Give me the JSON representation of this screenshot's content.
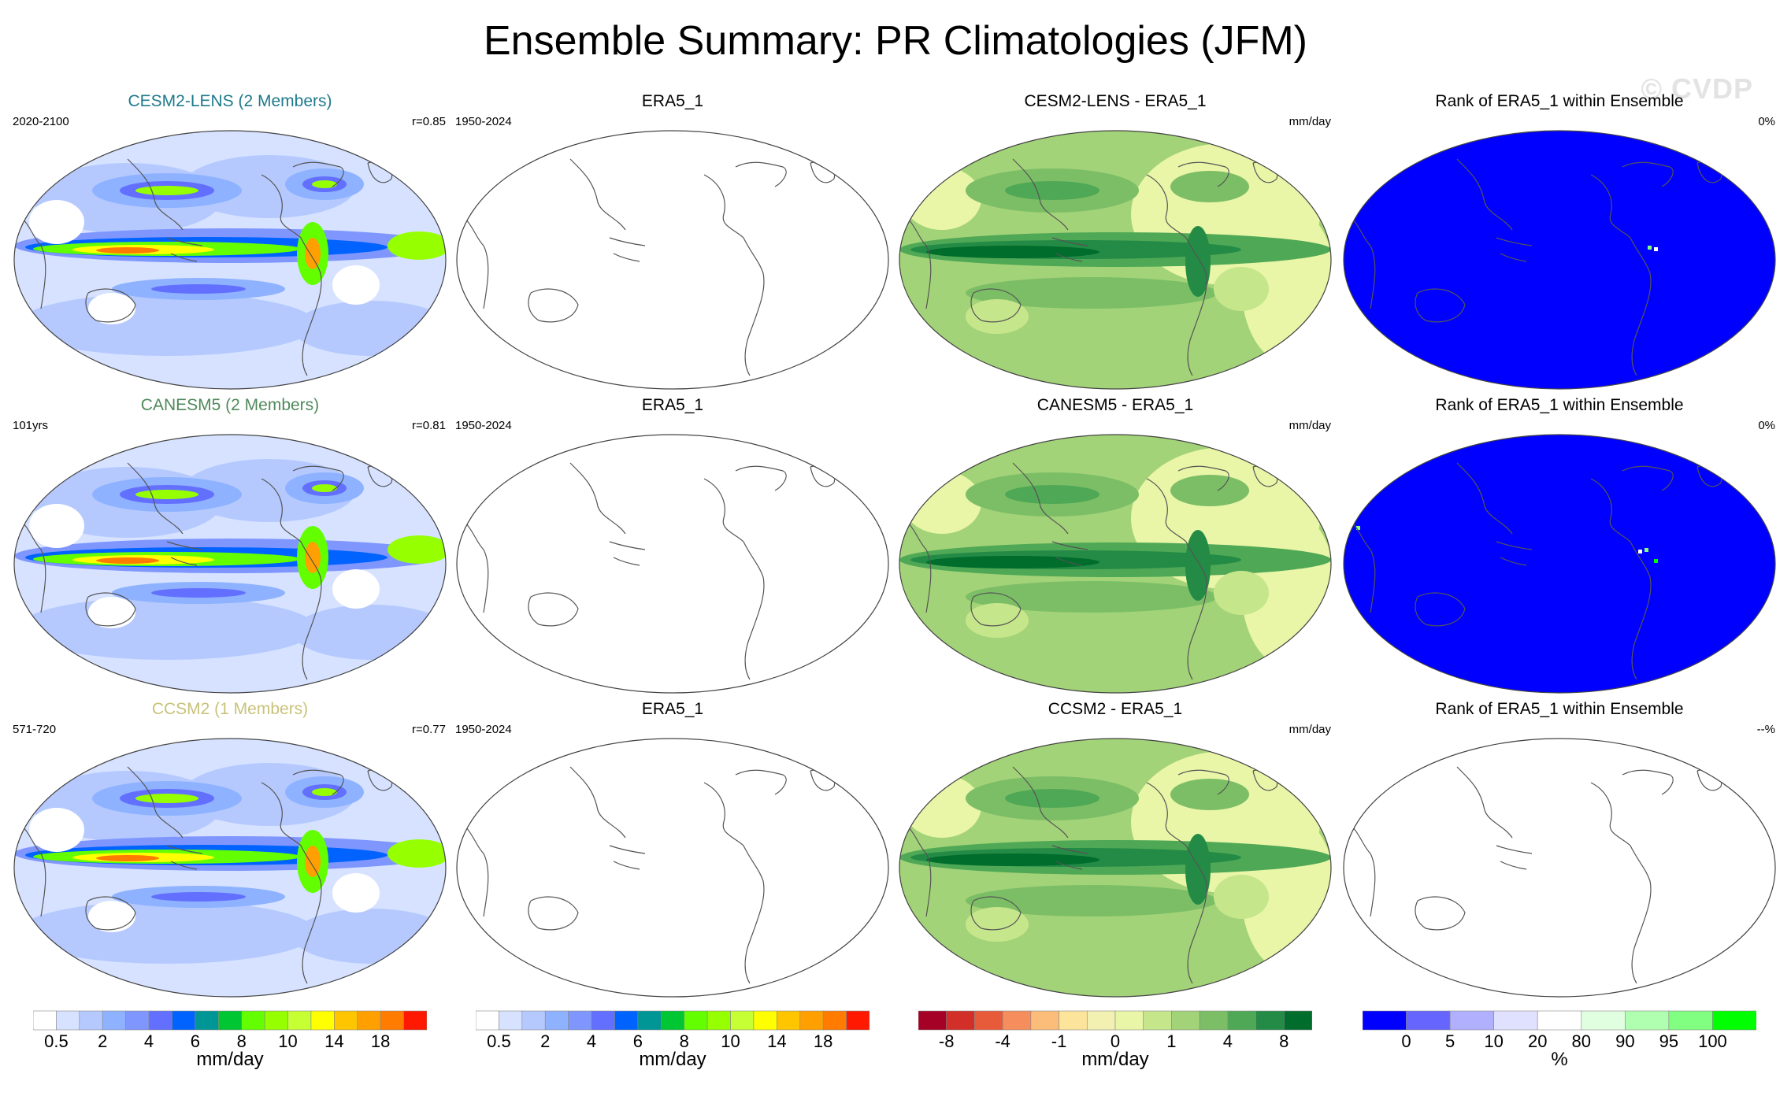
{
  "title": "Ensemble Summary: PR Climatologies (JFM)",
  "watermark": "© CVDP",
  "chart_data": [
    {
      "type": "heatmap",
      "title": "CESM2-LENS (2 Members)",
      "title_color": "#1f7a8c",
      "left_label": "2020-2100",
      "right_label": "r=0.85",
      "field": "model-precip",
      "colorbar": "precip",
      "variant": 0
    },
    {
      "type": "heatmap",
      "title": "ERA5_1",
      "title_color": "#000000",
      "left_label": "1950-2024",
      "right_label": "",
      "field": "blank",
      "colorbar": "precip",
      "variant": 0
    },
    {
      "type": "heatmap",
      "title": "CESM2-LENS - ERA5_1",
      "title_color": "#000000",
      "left_label": "",
      "right_label": "mm/day",
      "field": "difference",
      "colorbar": "diff",
      "variant": 0
    },
    {
      "type": "heatmap",
      "title": "Rank of ERA5_1 within Ensemble",
      "title_color": "#000000",
      "left_label": "",
      "right_label": "0%",
      "field": "rank",
      "colorbar": "rank",
      "variant": 0
    },
    {
      "type": "heatmap",
      "title": "CANESM5 (2 Members)",
      "title_color": "#4f8a5b",
      "left_label": "101yrs",
      "right_label": "r=0.81",
      "field": "model-precip",
      "colorbar": "precip",
      "variant": 1
    },
    {
      "type": "heatmap",
      "title": "ERA5_1",
      "title_color": "#000000",
      "left_label": "1950-2024",
      "right_label": "",
      "field": "blank",
      "colorbar": "precip",
      "variant": 1
    },
    {
      "type": "heatmap",
      "title": "CANESM5 - ERA5_1",
      "title_color": "#000000",
      "left_label": "",
      "right_label": "mm/day",
      "field": "difference",
      "colorbar": "diff",
      "variant": 1
    },
    {
      "type": "heatmap",
      "title": "Rank of ERA5_1 within Ensemble",
      "title_color": "#000000",
      "left_label": "",
      "right_label": "0%",
      "field": "rank",
      "colorbar": "rank",
      "variant": 1
    },
    {
      "type": "heatmap",
      "title": "CCSM2 (1 Members)",
      "title_color": "#c9c27a",
      "left_label": "571-720",
      "right_label": "r=0.77",
      "field": "model-precip",
      "colorbar": "precip",
      "variant": 2
    },
    {
      "type": "heatmap",
      "title": "ERA5_1",
      "title_color": "#000000",
      "left_label": "1950-2024",
      "right_label": "",
      "field": "blank",
      "colorbar": "precip",
      "variant": 2
    },
    {
      "type": "heatmap",
      "title": "CCSM2 - ERA5_1",
      "title_color": "#000000",
      "left_label": "",
      "right_label": "mm/day",
      "field": "difference",
      "colorbar": "diff",
      "variant": 2
    },
    {
      "type": "heatmap",
      "title": "Rank of ERA5_1 within Ensemble",
      "title_color": "#000000",
      "left_label": "",
      "right_label": "--%",
      "field": "blank",
      "colorbar": "rank",
      "variant": 2
    }
  ],
  "colorbars": {
    "precip": {
      "unit": "mm/day",
      "colors": [
        "#ffffff",
        "#d6e2ff",
        "#b5c9ff",
        "#8eb2ff",
        "#7f96ff",
        "#6370ff",
        "#0063ff",
        "#009696",
        "#00c633",
        "#63ff00",
        "#96ff00",
        "#c6ff33",
        "#ffff00",
        "#ffc600",
        "#ffa000",
        "#ff7c00",
        "#ff1900"
      ],
      "ticks": [
        {
          "label": "0.5",
          "boundary": 1
        },
        {
          "label": "2",
          "boundary": 3
        },
        {
          "label": "4",
          "boundary": 5
        },
        {
          "label": "6",
          "boundary": 7
        },
        {
          "label": "8",
          "boundary": 9
        },
        {
          "label": "10",
          "boundary": 11
        },
        {
          "label": "14",
          "boundary": 13
        },
        {
          "label": "18",
          "boundary": 15
        }
      ]
    },
    "diff": {
      "unit": "mm/day",
      "colors": [
        "#a50026",
        "#d12f27",
        "#e75a3a",
        "#f68d5c",
        "#fbbd79",
        "#fde49b",
        "#f2f1b2",
        "#e9f5a7",
        "#c6e68c",
        "#a3d378",
        "#7cbe66",
        "#4fa855",
        "#238b45",
        "#006d2c"
      ],
      "ticks": [
        {
          "label": "-8",
          "boundary": 1
        },
        {
          "label": "-4",
          "boundary": 3
        },
        {
          "label": "-1",
          "boundary": 5
        },
        {
          "label": "0",
          "boundary": 7
        },
        {
          "label": "1",
          "boundary": 9
        },
        {
          "label": "4",
          "boundary": 11
        },
        {
          "label": "8",
          "boundary": 13
        }
      ]
    },
    "rank": {
      "unit": "%",
      "colors": [
        "#0000ff",
        "#6666ff",
        "#b0b0ff",
        "#e0e0ff",
        "#ffffff",
        "#e0ffe0",
        "#b0ffb0",
        "#80ff80",
        "#00ff00"
      ],
      "ticks": [
        {
          "label": "0",
          "boundary": 1
        },
        {
          "label": "5",
          "boundary": 2
        },
        {
          "label": "10",
          "boundary": 3
        },
        {
          "label": "20",
          "boundary": 4
        },
        {
          "label": "80",
          "boundary": 5
        },
        {
          "label": "90",
          "boundary": 6
        },
        {
          "label": "95",
          "boundary": 7
        },
        {
          "label": "100",
          "boundary": 8
        }
      ]
    }
  },
  "colorbar_order": [
    "precip",
    "precip",
    "diff",
    "rank"
  ]
}
